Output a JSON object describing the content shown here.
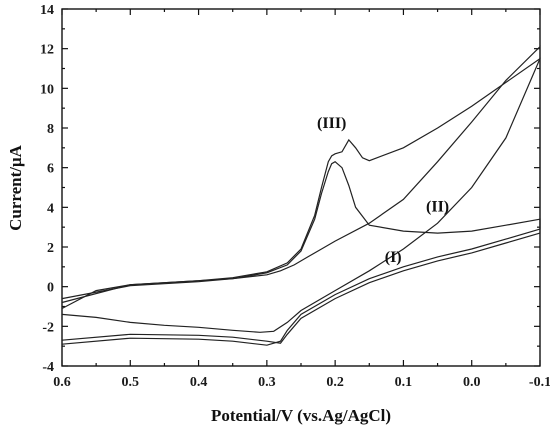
{
  "chart_data": {
    "type": "line",
    "xlabel": "Potential/V (vs.Ag/AgCl)",
    "ylabel": "Current/μA",
    "xlim": [
      0.6,
      -0.1
    ],
    "ylim": [
      -4,
      14
    ],
    "x_reversed": true,
    "x_ticks": [
      0.6,
      0.5,
      0.4,
      0.3,
      0.2,
      0.1,
      0.0,
      -0.1
    ],
    "x_tick_labels": [
      "0.6",
      "0.5",
      "0.4",
      "0.3",
      "0.2",
      "0.1",
      "0.0",
      "-0.1"
    ],
    "y_ticks": [
      -4,
      -2,
      0,
      2,
      4,
      6,
      8,
      10,
      12,
      14
    ],
    "y_tick_labels": [
      "-4",
      "-2",
      "0",
      "2",
      "4",
      "6",
      "8",
      "10",
      "12",
      "14"
    ],
    "grid": false,
    "annotations": [
      {
        "text": "(III)",
        "x": 0.205,
        "y": 8.0
      },
      {
        "text": "(II)",
        "x": 0.05,
        "y": 3.8
      },
      {
        "text": "(I)",
        "x": 0.115,
        "y": 1.25
      }
    ],
    "series": [
      {
        "x": [
          0.6,
          0.55,
          0.5,
          0.45,
          0.4,
          0.35,
          0.3,
          0.28,
          0.26,
          0.24,
          0.22,
          0.2,
          0.15,
          0.1,
          0.05,
          0.0,
          -0.05,
          -0.1,
          -0.1,
          -0.05,
          0.0,
          0.05,
          0.1,
          0.15,
          0.2,
          0.25,
          0.27,
          0.29,
          0.31,
          0.35,
          0.4,
          0.45,
          0.5,
          0.55,
          0.6
        ],
        "y": [
          -1.1,
          -0.2,
          0.1,
          0.2,
          0.3,
          0.4,
          0.6,
          0.8,
          1.1,
          1.5,
          1.9,
          2.3,
          3.2,
          4.4,
          6.3,
          8.3,
          10.4,
          12.1,
          11.5,
          7.5,
          5.0,
          3.2,
          1.9,
          0.8,
          -0.2,
          -1.2,
          -1.8,
          -2.25,
          -2.3,
          -2.2,
          -2.05,
          -1.95,
          -1.8,
          -1.55,
          -1.4
        ]
      },
      {
        "x": [
          0.6,
          0.5,
          0.4,
          0.35,
          0.3,
          0.27,
          0.25,
          0.23,
          0.22,
          0.21,
          0.205,
          0.2,
          0.19,
          0.18,
          0.17,
          0.15,
          0.1,
          0.05,
          0.0,
          -0.05,
          -0.1,
          -0.1,
          -0.05,
          0.0,
          0.05,
          0.1,
          0.15,
          0.2,
          0.25,
          0.27,
          0.28,
          0.3,
          0.35,
          0.4,
          0.5,
          0.6
        ],
        "y": [
          -0.6,
          0.05,
          0.25,
          0.4,
          0.7,
          1.1,
          1.8,
          3.4,
          4.7,
          5.8,
          6.2,
          6.3,
          6.0,
          5.1,
          4.0,
          3.1,
          2.8,
          2.7,
          2.8,
          3.1,
          3.4,
          2.7,
          2.2,
          1.7,
          1.3,
          0.8,
          0.2,
          -0.6,
          -1.6,
          -2.4,
          -2.85,
          -2.75,
          -2.55,
          -2.45,
          -2.4,
          -2.7
        ]
      },
      {
        "x": [
          0.6,
          0.5,
          0.4,
          0.35,
          0.3,
          0.27,
          0.25,
          0.23,
          0.22,
          0.21,
          0.205,
          0.2,
          0.19,
          0.18,
          0.17,
          0.16,
          0.15,
          0.1,
          0.05,
          0.0,
          -0.05,
          -0.1,
          -0.1,
          -0.05,
          0.0,
          0.05,
          0.1,
          0.15,
          0.2,
          0.25,
          0.27,
          0.28,
          0.3,
          0.35,
          0.4,
          0.5,
          0.6
        ],
        "y": [
          -0.8,
          0.1,
          0.3,
          0.45,
          0.75,
          1.2,
          1.9,
          3.6,
          5.0,
          6.3,
          6.6,
          6.7,
          6.8,
          7.4,
          7.0,
          6.5,
          6.35,
          7.0,
          8.0,
          9.1,
          10.3,
          11.5,
          2.9,
          2.4,
          1.9,
          1.5,
          1.0,
          0.4,
          -0.4,
          -1.4,
          -2.2,
          -2.75,
          -2.95,
          -2.75,
          -2.65,
          -2.6,
          -2.9
        ]
      }
    ]
  }
}
